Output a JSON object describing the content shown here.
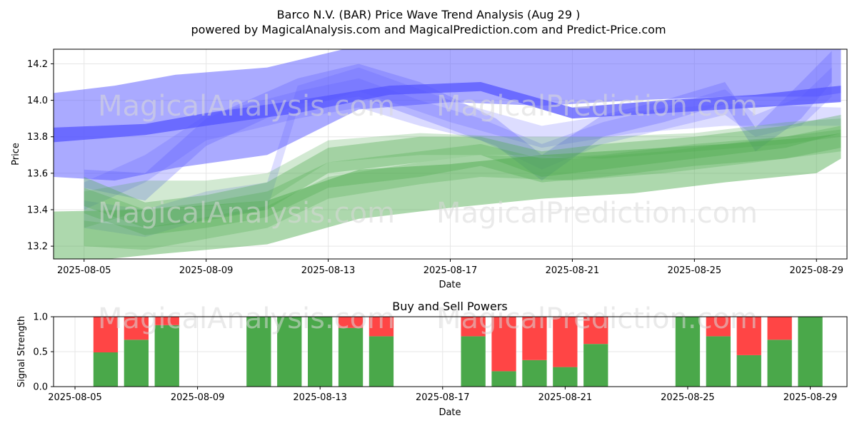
{
  "header": {
    "title": "Barco N.V. (BAR) Price Wave Trend Analysis (Aug 29 )",
    "subtitle": "powered by MagicalAnalysis.com and MagicalPrediction.com and Predict-Price.com"
  },
  "watermarks": [
    "MagicalAnalysis.com",
    "MagicalPrediction.com"
  ],
  "colors": {
    "blue": "#5555ff",
    "green": "#4aa84a",
    "buy": "#4aa84a",
    "sell": "#ff4545",
    "grid": "#e6e6e6"
  },
  "chart_data": [
    {
      "type": "area",
      "xlabel": "Date",
      "ylabel": "Price",
      "x_range": [
        "2025-08-04",
        "2025-08-30"
      ],
      "ylim": [
        13.13,
        14.28
      ],
      "yticks": [
        13.2,
        13.4,
        13.6,
        13.8,
        14.0,
        14.2
      ],
      "ytick_labels": [
        "13.2",
        "13.4",
        "13.6",
        "13.8",
        "14.0",
        "14.2"
      ],
      "xticks": [
        "2025-08-05",
        "2025-08-09",
        "2025-08-13",
        "2025-08-17",
        "2025-08-21",
        "2025-08-25",
        "2025-08-29"
      ],
      "grid": true,
      "series": [
        {
          "color": "blue",
          "opacity": 0.5,
          "points": [
            [
              "2025-08-04",
              13.58,
              14.04
            ],
            [
              "2025-08-06",
              13.56,
              14.08
            ],
            [
              "2025-08-08",
              13.63,
              14.14
            ],
            [
              "2025-08-11",
              13.7,
              14.18
            ],
            [
              "2025-08-14",
              13.95,
              14.3
            ],
            [
              "2025-08-17",
              13.99,
              14.3
            ],
            [
              "2025-08-20",
              13.97,
              14.3
            ],
            [
              "2025-08-23",
              14.0,
              14.3
            ],
            [
              "2025-08-26",
              14.02,
              14.3
            ],
            [
              "2025-08-29",
              14.02,
              14.28
            ],
            [
              "2025-08-29.8",
              14.04,
              14.28
            ]
          ]
        },
        {
          "color": "blue",
          "opacity": 0.75,
          "points": [
            [
              "2025-08-04",
              13.77,
              13.85
            ],
            [
              "2025-08-07",
              13.81,
              13.87
            ],
            [
              "2025-08-09",
              13.86,
              13.93
            ],
            [
              "2025-08-12",
              13.93,
              14.0
            ],
            [
              "2025-08-15",
              14.03,
              14.08
            ],
            [
              "2025-08-18",
              14.05,
              14.1
            ],
            [
              "2025-08-21",
              13.9,
              13.96
            ],
            [
              "2025-08-24",
              13.93,
              14.0
            ],
            [
              "2025-08-27",
              13.96,
              14.03
            ],
            [
              "2025-08-29.8",
              13.99,
              14.08
            ]
          ]
        },
        {
          "color": "blue",
          "opacity": 0.28,
          "points": [
            [
              "2025-08-05",
              13.52,
              13.62
            ],
            [
              "2025-08-07",
              13.45,
              13.6
            ],
            [
              "2025-08-09",
              13.75,
              13.9
            ],
            [
              "2025-08-12",
              13.98,
              14.12
            ],
            [
              "2025-08-14",
              14.02,
              14.2
            ],
            [
              "2025-08-16",
              13.9,
              14.1
            ],
            [
              "2025-08-18.5",
              13.75,
              13.9
            ],
            [
              "2025-08-20",
              13.56,
              13.7
            ],
            [
              "2025-08-22",
              13.8,
              13.92
            ],
            [
              "2025-08-24",
              13.88,
              14.0
            ],
            [
              "2025-08-26",
              13.98,
              14.1
            ],
            [
              "2025-08-27",
              13.72,
              13.85
            ],
            [
              "2025-08-28.5",
              13.9,
              14.1
            ],
            [
              "2025-08-29.5",
              14.1,
              14.27
            ]
          ]
        },
        {
          "color": "blue",
          "opacity": 0.22,
          "points": [
            [
              "2025-08-05",
              13.4,
              13.55
            ],
            [
              "2025-08-07",
              13.55,
              13.7
            ],
            [
              "2025-08-09",
              13.78,
              13.92
            ],
            [
              "2025-08-12",
              13.9,
              14.05
            ],
            [
              "2025-08-14",
              13.96,
              14.12
            ],
            [
              "2025-08-16",
              13.86,
              14.0
            ],
            [
              "2025-08-18",
              13.78,
              13.9
            ],
            [
              "2025-08-20",
              13.62,
              13.76
            ],
            [
              "2025-08-22",
              13.76,
              13.88
            ],
            [
              "2025-08-24",
              13.84,
              13.96
            ],
            [
              "2025-08-26",
              13.92,
              14.06
            ],
            [
              "2025-08-27",
              13.8,
              13.92
            ],
            [
              "2025-08-28.5",
              13.86,
              14.02
            ],
            [
              "2025-08-29.5",
              14.02,
              14.18
            ]
          ]
        },
        {
          "color": "blue",
          "opacity": 0.2,
          "points": [
            [
              "2025-08-05",
              13.3,
              13.45
            ],
            [
              "2025-08-07",
              13.25,
              13.4
            ],
            [
              "2025-08-09",
              13.35,
              13.5
            ],
            [
              "2025-08-11",
              13.4,
              13.55
            ],
            [
              "2025-08-12",
              13.95,
              14.08
            ],
            [
              "2025-08-14",
              14.05,
              14.18
            ],
            [
              "2025-08-17",
              13.88,
              14.0
            ],
            [
              "2025-08-20",
              13.74,
              13.86
            ],
            [
              "2025-08-23",
              13.82,
              13.94
            ],
            [
              "2025-08-26",
              13.86,
              13.98
            ],
            [
              "2025-08-29.8",
              13.86,
              13.96
            ]
          ]
        },
        {
          "color": "green",
          "opacity": 0.45,
          "points": [
            [
              "2025-08-04",
              13.1,
              13.39
            ],
            [
              "2025-08-07",
              13.15,
              13.4
            ],
            [
              "2025-08-11",
              13.21,
              13.45
            ],
            [
              "2025-08-14",
              13.35,
              13.62
            ],
            [
              "2025-08-17",
              13.41,
              13.65
            ],
            [
              "2025-08-20",
              13.46,
              13.7
            ],
            [
              "2025-08-23",
              13.49,
              13.73
            ],
            [
              "2025-08-26",
              13.55,
              13.76
            ],
            [
              "2025-08-29",
              13.6,
              13.8
            ],
            [
              "2025-08-29.8",
              13.68,
              13.82
            ]
          ]
        },
        {
          "color": "green",
          "opacity": 0.35,
          "points": [
            [
              "2025-08-05",
              13.42,
              13.58
            ],
            [
              "2025-08-07",
              13.3,
              13.44
            ],
            [
              "2025-08-09",
              13.34,
              13.48
            ],
            [
              "2025-08-11",
              13.4,
              13.55
            ],
            [
              "2025-08-13",
              13.6,
              13.74
            ],
            [
              "2025-08-16",
              13.66,
              13.8
            ],
            [
              "2025-08-18",
              13.7,
              13.8
            ],
            [
              "2025-08-20",
              13.58,
              13.72
            ],
            [
              "2025-08-22",
              13.62,
              13.76
            ],
            [
              "2025-08-25",
              13.68,
              13.8
            ],
            [
              "2025-08-28",
              13.74,
              13.86
            ],
            [
              "2025-08-29.8",
              13.82,
              13.92
            ]
          ]
        },
        {
          "color": "green",
          "opacity": 0.3,
          "points": [
            [
              "2025-08-05",
              13.38,
              13.52
            ],
            [
              "2025-08-07",
              13.26,
              13.4
            ],
            [
              "2025-08-09",
              13.3,
              13.44
            ],
            [
              "2025-08-11",
              13.36,
              13.5
            ],
            [
              "2025-08-13",
              13.52,
              13.66
            ],
            [
              "2025-08-16",
              13.58,
              13.72
            ],
            [
              "2025-08-18",
              13.64,
              13.76
            ],
            [
              "2025-08-20",
              13.55,
              13.68
            ],
            [
              "2025-08-22",
              13.58,
              13.7
            ],
            [
              "2025-08-25",
              13.64,
              13.76
            ],
            [
              "2025-08-28",
              13.68,
              13.8
            ],
            [
              "2025-08-29.8",
              13.74,
              13.86
            ]
          ]
        },
        {
          "color": "green",
          "opacity": 0.28,
          "points": [
            [
              "2025-08-05",
              13.2,
              13.34
            ],
            [
              "2025-08-07",
              13.18,
              13.3
            ],
            [
              "2025-08-09",
              13.24,
              13.36
            ],
            [
              "2025-08-11",
              13.3,
              13.42
            ],
            [
              "2025-08-13",
              13.46,
              13.58
            ],
            [
              "2025-08-16",
              13.54,
              13.66
            ],
            [
              "2025-08-18",
              13.58,
              13.7
            ],
            [
              "2025-08-21",
              13.56,
              13.68
            ],
            [
              "2025-08-24",
              13.6,
              13.72
            ],
            [
              "2025-08-27",
              13.66,
              13.78
            ],
            [
              "2025-08-29.8",
              13.72,
              13.84
            ]
          ]
        },
        {
          "color": "green",
          "opacity": 0.25,
          "points": [
            [
              "2025-08-05",
              13.3,
              13.5
            ],
            [
              "2025-08-07",
              13.4,
              13.56
            ],
            [
              "2025-08-09",
              13.42,
              13.56
            ],
            [
              "2025-08-11",
              13.45,
              13.6
            ],
            [
              "2025-08-13",
              13.66,
              13.78
            ],
            [
              "2025-08-16",
              13.7,
              13.82
            ],
            [
              "2025-08-19",
              13.7,
              13.8
            ],
            [
              "2025-08-22",
              13.68,
              13.8
            ],
            [
              "2025-08-25",
              13.72,
              13.82
            ],
            [
              "2025-08-28",
              13.76,
              13.88
            ],
            [
              "2025-08-29.8",
              13.8,
              13.9
            ]
          ]
        }
      ]
    },
    {
      "type": "bar",
      "title": "Buy and Sell Powers",
      "xlabel": "Date",
      "ylabel": "Signal Strength",
      "ylim": [
        0,
        1.0
      ],
      "yticks": [
        0.0,
        0.5,
        1.0
      ],
      "ytick_labels": [
        "0.0",
        "0.5",
        "1.0"
      ],
      "x_range": [
        "2025-08-04.3",
        "2025-08-30.2"
      ],
      "xticks": [
        "2025-08-05",
        "2025-08-09",
        "2025-08-13",
        "2025-08-17",
        "2025-08-21",
        "2025-08-25",
        "2025-08-29"
      ],
      "categories": [
        "2025-08-06",
        "2025-08-07",
        "2025-08-08",
        "2025-08-11",
        "2025-08-12",
        "2025-08-13",
        "2025-08-14",
        "2025-08-15",
        "2025-08-18",
        "2025-08-19",
        "2025-08-20",
        "2025-08-21",
        "2025-08-22",
        "2025-08-25",
        "2025-08-26",
        "2025-08-27",
        "2025-08-28",
        "2025-08-29"
      ],
      "series": [
        {
          "name": "",
          "color": "buy",
          "values": [
            0.49,
            0.67,
            0.88,
            1.0,
            1.0,
            1.0,
            0.84,
            0.72,
            0.72,
            0.22,
            0.38,
            0.28,
            0.61,
            1.0,
            0.72,
            0.45,
            0.67,
            1.0
          ]
        },
        {
          "name": "",
          "color": "sell",
          "values": [
            0.51,
            0.33,
            0.12,
            0.0,
            0.0,
            0.0,
            0.16,
            0.28,
            0.28,
            0.78,
            0.62,
            0.72,
            0.39,
            0.0,
            0.28,
            0.55,
            0.33,
            0.0
          ]
        }
      ]
    }
  ]
}
